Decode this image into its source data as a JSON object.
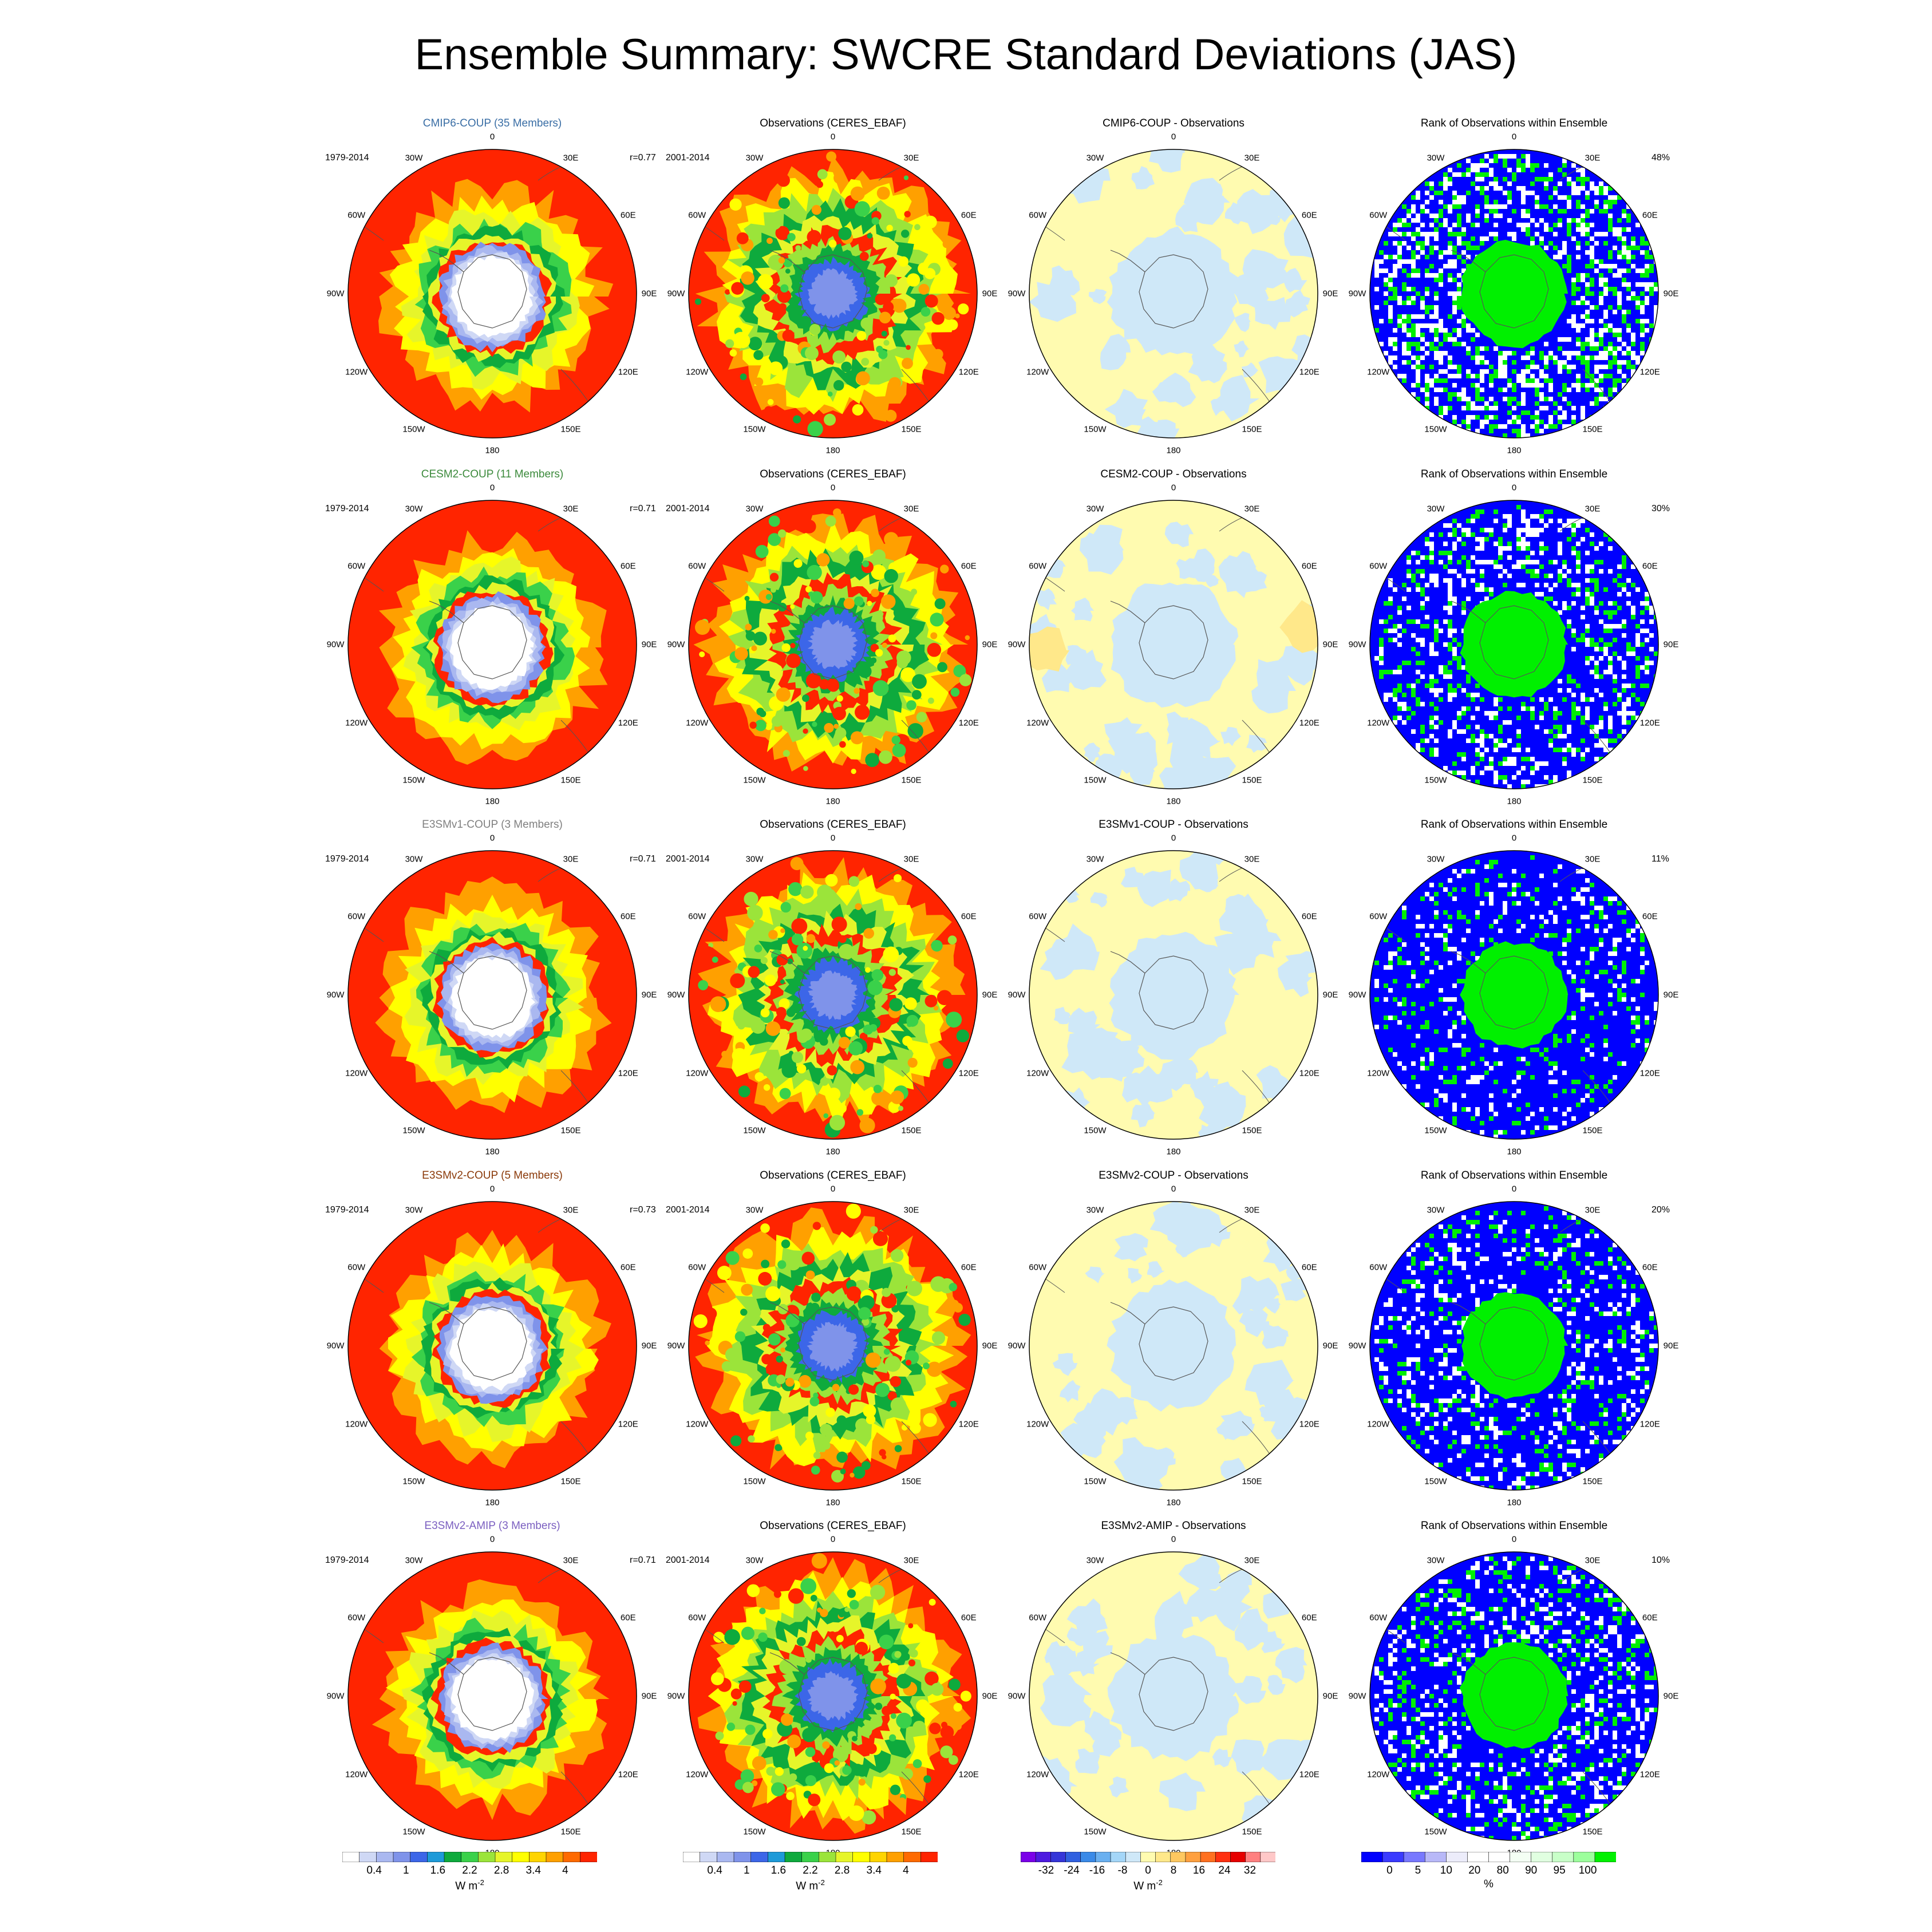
{
  "title": "Ensemble Summary: SWCRE Standard Deviations (JAS)",
  "colors": {
    "sd_scale": [
      "#ffffff",
      "#cfd8f5",
      "#aab8f0",
      "#7f93ea",
      "#3c66e8",
      "#1d9ad8",
      "#0eaa3d",
      "#3ad14a",
      "#9be43a",
      "#e6f52a",
      "#ffff00",
      "#ffd400",
      "#ffa000",
      "#ff6a00",
      "#ff2400"
    ],
    "diff_scale": [
      "#7a00e8",
      "#4d1ae0",
      "#3535d8",
      "#3060e0",
      "#3a8ae8",
      "#6ab0f0",
      "#a4d6f8",
      "#cfe8f8",
      "#fffbb0",
      "#ffe88a",
      "#ffc860",
      "#ffa040",
      "#ff7020",
      "#ff3010",
      "#e60000",
      "#ff8080",
      "#ffc8c8"
    ],
    "rank_scale": [
      "#0000ff",
      "#3a3aff",
      "#7878ff",
      "#b8b8f8",
      "#ececfa",
      "#ffffff",
      "#ffffff",
      "#f4fff4",
      "#e0ffe0",
      "#c8ffc8",
      "#9cff9c",
      "#00f000"
    ],
    "series_title_colors": [
      "#3a6ea5",
      "#3c8a3c",
      "#808080",
      "#8b3a0a",
      "#7b5fc0"
    ]
  },
  "lon_labels": [
    "0",
    "30E",
    "60E",
    "90E",
    "120E",
    "150E",
    "180",
    "150W",
    "120W",
    "90W",
    "60W",
    "30W"
  ],
  "rows": [
    {
      "model_title": "CMIP6-COUP (35 Members)",
      "model_period": "1979-2014",
      "model_r": "r=0.77",
      "obs_title": "Observations (CERES_EBAF)",
      "obs_period": "2001-2014",
      "diff_title": "CMIP6-COUP - Observations",
      "rank_title": "Rank of Observations within Ensemble",
      "rank_pct": "48%"
    },
    {
      "model_title": "CESM2-COUP (11 Members)",
      "model_period": "1979-2014",
      "model_r": "r=0.71",
      "obs_title": "Observations (CERES_EBAF)",
      "obs_period": "2001-2014",
      "diff_title": "CESM2-COUP - Observations",
      "rank_title": "Rank of Observations within Ensemble",
      "rank_pct": "30%"
    },
    {
      "model_title": "E3SMv1-COUP (3 Members)",
      "model_period": "1979-2014",
      "model_r": "r=0.71",
      "obs_title": "Observations (CERES_EBAF)",
      "obs_period": "2001-2014",
      "diff_title": "E3SMv1-COUP - Observations",
      "rank_title": "Rank of Observations within Ensemble",
      "rank_pct": "11%"
    },
    {
      "model_title": "E3SMv2-COUP (5 Members)",
      "model_period": "1979-2014",
      "model_r": "r=0.73",
      "obs_title": "Observations (CERES_EBAF)",
      "obs_period": "2001-2014",
      "diff_title": "E3SMv2-COUP - Observations",
      "rank_title": "Rank of Observations within Ensemble",
      "rank_pct": "20%"
    },
    {
      "model_title": "E3SMv2-AMIP (3 Members)",
      "model_period": "1979-2014",
      "model_r": "r=0.71",
      "obs_title": "Observations (CERES_EBAF)",
      "obs_period": "2001-2014",
      "diff_title": "E3SMv2-AMIP - Observations",
      "rank_title": "Rank of Observations within Ensemble",
      "rank_pct": "10%"
    }
  ],
  "colorbars": [
    {
      "name": "model-sd",
      "ticks": [
        "0.4",
        "1",
        "1.6",
        "2.2",
        "2.8",
        "3.4",
        "4"
      ],
      "unit": "W m",
      "unit_sup": "-2"
    },
    {
      "name": "obs-sd",
      "ticks": [
        "0.4",
        "1",
        "1.6",
        "2.2",
        "2.8",
        "3.4",
        "4"
      ],
      "unit": "W m",
      "unit_sup": "-2"
    },
    {
      "name": "difference",
      "ticks": [
        "-32",
        "-24",
        "-16",
        "-8",
        "0",
        "8",
        "16",
        "24",
        "32"
      ],
      "unit": "W m",
      "unit_sup": "-2"
    },
    {
      "name": "rank",
      "ticks": [
        "0",
        "5",
        "10",
        "20",
        "80",
        "90",
        "95",
        "100"
      ],
      "unit": "%",
      "unit_sup": ""
    }
  ]
}
